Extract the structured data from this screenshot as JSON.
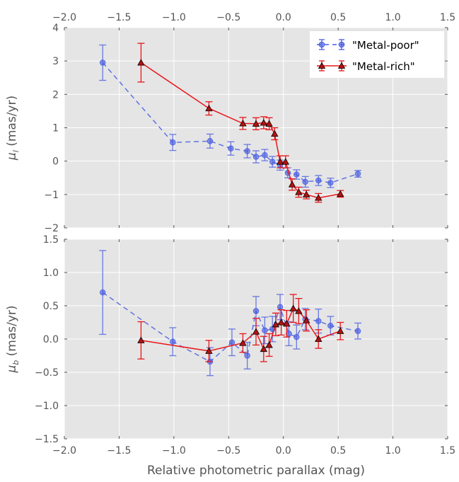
{
  "colors": {
    "panel_bg": "#e5e5e5",
    "grid": "#ffffff",
    "metal_poor": "#4a5ee0",
    "metal_rich": "#e8161a",
    "rich_marker_fill": "#b51212"
  },
  "figure": {
    "xlabel": "Relative photometric parallax (mag)"
  },
  "chart_data": [
    {
      "type": "line",
      "panel": "top",
      "xlabel": "Relative photometric parallax (mag)",
      "ylabel_symbol": "μ",
      "ylabel_sub": "l",
      "ylabel_units": " (mas/yr)",
      "xlim": [
        -2.0,
        1.5
      ],
      "ylim": [
        -2,
        4
      ],
      "xticks": [
        -2.0,
        -1.5,
        -1.0,
        -0.5,
        0.0,
        0.5,
        1.0,
        1.5
      ],
      "xtick_labels": [
        "−2.0",
        "−1.5",
        "−1.0",
        "−0.5",
        "0.0",
        "0.5",
        "1.0",
        "1.5"
      ],
      "yticks": [
        -2,
        -1,
        0,
        1,
        2,
        3,
        4
      ],
      "ytick_labels": [
        "−2",
        "−1",
        "0",
        "1",
        "2",
        "3",
        "4"
      ],
      "grid": true,
      "legend": "top-right",
      "series": [
        {
          "name": "\"Metal-poor\"",
          "style": "dashed-circle",
          "x": [
            -1.65,
            -1.01,
            -0.67,
            -0.48,
            -0.33,
            -0.25,
            -0.17,
            -0.1,
            -0.03,
            0.04,
            0.12,
            0.2,
            0.32,
            0.43,
            0.68
          ],
          "y": [
            2.95,
            0.56,
            0.6,
            0.38,
            0.3,
            0.13,
            0.18,
            -0.02,
            -0.12,
            -0.35,
            -0.4,
            -0.62,
            -0.58,
            -0.65,
            -0.38
          ],
          "yerr": [
            0.53,
            0.24,
            0.21,
            0.2,
            0.2,
            0.18,
            0.17,
            0.16,
            0.15,
            0.15,
            0.14,
            0.16,
            0.15,
            0.14,
            0.1
          ]
        },
        {
          "name": "\"Metal-rich\"",
          "style": "solid-triangle",
          "x": [
            -1.3,
            -0.68,
            -0.37,
            -0.25,
            -0.18,
            -0.13,
            -0.08,
            -0.03,
            0.02,
            0.08,
            0.14,
            0.21,
            0.32,
            0.52
          ],
          "y": [
            2.95,
            1.58,
            1.13,
            1.12,
            1.15,
            1.12,
            0.82,
            -0.02,
            -0.02,
            -0.7,
            -0.93,
            -1.0,
            -1.1,
            -0.98
          ],
          "yerr": [
            0.58,
            0.2,
            0.18,
            0.18,
            0.18,
            0.18,
            0.18,
            0.18,
            0.18,
            0.17,
            0.15,
            0.13,
            0.13,
            0.1
          ]
        }
      ]
    },
    {
      "type": "line",
      "panel": "bottom",
      "xlabel": "Relative photometric parallax (mag)",
      "ylabel_symbol": "μ",
      "ylabel_sub": "b",
      "ylabel_units": " (mas/yr)",
      "xlim": [
        -2.0,
        1.5
      ],
      "ylim": [
        -1.5,
        1.5
      ],
      "xticks": [
        -2.0,
        -1.5,
        -1.0,
        -0.5,
        0.0,
        0.5,
        1.0,
        1.5
      ],
      "xtick_labels": [
        "−2.0",
        "−1.5",
        "−1.0",
        "−0.5",
        "0.0",
        "0.5",
        "1.0",
        "1.5"
      ],
      "yticks": [
        -1.5,
        -1.0,
        -0.5,
        0.0,
        0.5,
        1.0,
        1.5
      ],
      "ytick_labels": [
        "−1.5",
        "−1.0",
        "−0.5",
        "0.0",
        "0.5",
        "1.0",
        "1.5"
      ],
      "grid": true,
      "series": [
        {
          "name": "\"Metal-poor\"",
          "style": "dashed-circle",
          "x": [
            -1.65,
            -1.01,
            -0.67,
            -0.47,
            -0.33,
            -0.25,
            -0.17,
            -0.1,
            -0.03,
            0.05,
            0.12,
            0.2,
            0.32,
            0.43,
            0.68
          ],
          "y": [
            0.7,
            -0.04,
            -0.34,
            -0.05,
            -0.25,
            0.42,
            0.13,
            0.15,
            0.48,
            0.08,
            0.03,
            0.3,
            0.27,
            0.2,
            0.12
          ],
          "yerr": [
            0.63,
            0.21,
            0.21,
            0.2,
            0.2,
            0.22,
            0.2,
            0.19,
            0.19,
            0.18,
            0.18,
            0.16,
            0.18,
            0.14,
            0.12
          ]
        },
        {
          "name": "\"Metal-rich\"",
          "style": "solid-triangle",
          "x": [
            -1.3,
            -0.68,
            -0.37,
            -0.25,
            -0.18,
            -0.13,
            -0.07,
            -0.02,
            0.03,
            0.09,
            0.14,
            0.21,
            0.32,
            0.52
          ],
          "y": [
            -0.02,
            -0.18,
            -0.06,
            0.11,
            -0.15,
            -0.09,
            0.22,
            0.25,
            0.23,
            0.46,
            0.42,
            0.28,
            0.0,
            0.12
          ],
          "yerr": [
            0.28,
            0.16,
            0.14,
            0.2,
            0.19,
            0.17,
            0.17,
            0.19,
            0.2,
            0.21,
            0.19,
            0.16,
            0.14,
            0.13
          ]
        }
      ]
    }
  ]
}
